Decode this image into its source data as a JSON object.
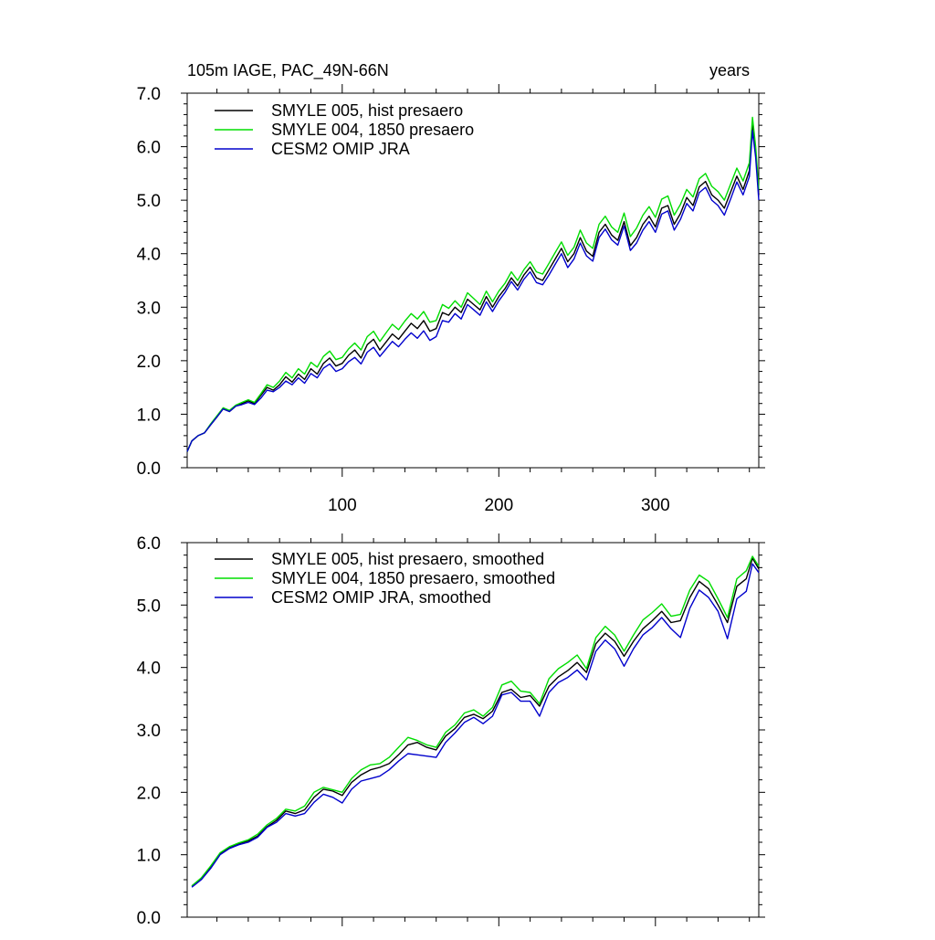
{
  "chart_data": [
    {
      "type": "line",
      "title_left": "105m IAGE, PAC_49N-66N",
      "title_right": "years",
      "xlim": [
        1,
        366
      ],
      "ylim": [
        0.0,
        7.0
      ],
      "y_ticks": [
        "0.0",
        "1.0",
        "2.0",
        "3.0",
        "4.0",
        "5.0",
        "6.0",
        "7.0"
      ],
      "x_ticks": [
        "100",
        "200",
        "300"
      ],
      "legend_position": "top-left",
      "grid": false,
      "series": [
        {
          "name": "SMYLE 005, hist presaero",
          "color": "#000000",
          "x": [
            1,
            4,
            8,
            12,
            16,
            20,
            24,
            28,
            32,
            36,
            40,
            44,
            48,
            52,
            56,
            60,
            64,
            68,
            72,
            76,
            80,
            84,
            88,
            92,
            96,
            100,
            104,
            108,
            112,
            116,
            120,
            124,
            128,
            132,
            136,
            140,
            144,
            148,
            152,
            156,
            160,
            164,
            168,
            172,
            176,
            180,
            184,
            188,
            192,
            196,
            200,
            204,
            208,
            212,
            216,
            220,
            224,
            228,
            232,
            236,
            240,
            244,
            248,
            252,
            256,
            260,
            264,
            268,
            272,
            276,
            280,
            284,
            288,
            292,
            296,
            300,
            304,
            308,
            312,
            316,
            320,
            324,
            328,
            332,
            336,
            340,
            344,
            348,
            352,
            356,
            360,
            362,
            364,
            366
          ],
          "values": [
            0.3,
            0.5,
            0.6,
            0.65,
            0.8,
            0.95,
            1.1,
            1.05,
            1.15,
            1.2,
            1.25,
            1.2,
            1.35,
            1.5,
            1.45,
            1.55,
            1.7,
            1.6,
            1.75,
            1.65,
            1.85,
            1.75,
            1.95,
            2.05,
            1.9,
            1.95,
            2.1,
            2.2,
            2.05,
            2.3,
            2.4,
            2.2,
            2.35,
            2.5,
            2.4,
            2.55,
            2.7,
            2.6,
            2.75,
            2.55,
            2.6,
            2.9,
            2.85,
            3.0,
            2.9,
            3.15,
            3.05,
            2.95,
            3.2,
            3.0,
            3.2,
            3.35,
            3.55,
            3.4,
            3.6,
            3.75,
            3.55,
            3.5,
            3.7,
            3.9,
            4.1,
            3.85,
            4.0,
            4.3,
            4.05,
            3.95,
            4.4,
            4.55,
            4.35,
            4.25,
            4.6,
            4.15,
            4.3,
            4.55,
            4.7,
            4.5,
            4.85,
            4.9,
            4.55,
            4.75,
            5.05,
            4.9,
            5.25,
            5.35,
            5.1,
            5.0,
            4.85,
            5.15,
            5.45,
            5.2,
            5.55,
            6.4,
            5.9,
            5.1
          ]
        },
        {
          "name": "SMYLE 004, 1850 presaero",
          "color": "#00dd00",
          "x": [
            1,
            4,
            8,
            12,
            16,
            20,
            24,
            28,
            32,
            36,
            40,
            44,
            48,
            52,
            56,
            60,
            64,
            68,
            72,
            76,
            80,
            84,
            88,
            92,
            96,
            100,
            104,
            108,
            112,
            116,
            120,
            124,
            128,
            132,
            136,
            140,
            144,
            148,
            152,
            156,
            160,
            164,
            168,
            172,
            176,
            180,
            184,
            188,
            192,
            196,
            200,
            204,
            208,
            212,
            216,
            220,
            224,
            228,
            232,
            236,
            240,
            244,
            248,
            252,
            256,
            260,
            264,
            268,
            272,
            276,
            280,
            284,
            288,
            292,
            296,
            300,
            304,
            308,
            312,
            316,
            320,
            324,
            328,
            332,
            336,
            340,
            344,
            348,
            352,
            356,
            360,
            362,
            364,
            366
          ],
          "values": [
            0.3,
            0.5,
            0.6,
            0.65,
            0.82,
            0.97,
            1.12,
            1.07,
            1.17,
            1.22,
            1.27,
            1.22,
            1.38,
            1.55,
            1.5,
            1.62,
            1.78,
            1.68,
            1.85,
            1.75,
            1.97,
            1.88,
            2.08,
            2.18,
            2.02,
            2.06,
            2.22,
            2.33,
            2.2,
            2.45,
            2.55,
            2.36,
            2.52,
            2.68,
            2.58,
            2.74,
            2.88,
            2.78,
            2.92,
            2.72,
            2.75,
            3.05,
            2.98,
            3.12,
            3.0,
            3.27,
            3.16,
            3.05,
            3.3,
            3.1,
            3.3,
            3.45,
            3.66,
            3.5,
            3.7,
            3.85,
            3.66,
            3.62,
            3.82,
            4.02,
            4.22,
            3.97,
            4.12,
            4.44,
            4.2,
            4.1,
            4.55,
            4.7,
            4.5,
            4.4,
            4.76,
            4.32,
            4.48,
            4.72,
            4.88,
            4.68,
            5.02,
            5.08,
            4.72,
            4.92,
            5.2,
            5.06,
            5.4,
            5.5,
            5.26,
            5.16,
            5.0,
            5.3,
            5.6,
            5.36,
            5.7,
            6.55,
            6.0,
            5.2
          ]
        },
        {
          "name": "CESM2 OMIP JRA",
          "color": "#0000cc",
          "x": [
            1,
            4,
            8,
            12,
            16,
            20,
            24,
            28,
            32,
            36,
            40,
            44,
            48,
            52,
            56,
            60,
            64,
            68,
            72,
            76,
            80,
            84,
            88,
            92,
            96,
            100,
            104,
            108,
            112,
            116,
            120,
            124,
            128,
            132,
            136,
            140,
            144,
            148,
            152,
            156,
            160,
            164,
            168,
            172,
            176,
            180,
            184,
            188,
            192,
            196,
            200,
            204,
            208,
            212,
            216,
            220,
            224,
            228,
            232,
            236,
            240,
            244,
            248,
            252,
            256,
            260,
            264,
            268,
            272,
            276,
            280,
            284,
            288,
            292,
            296,
            300,
            304,
            308,
            312,
            316,
            320,
            324,
            328,
            332,
            336,
            340,
            344,
            348,
            352,
            356,
            360,
            362,
            364,
            366
          ],
          "values": [
            0.3,
            0.5,
            0.6,
            0.65,
            0.8,
            0.95,
            1.1,
            1.05,
            1.15,
            1.18,
            1.22,
            1.18,
            1.3,
            1.45,
            1.42,
            1.5,
            1.62,
            1.55,
            1.68,
            1.58,
            1.76,
            1.68,
            1.86,
            1.94,
            1.8,
            1.85,
            1.98,
            2.06,
            1.94,
            2.16,
            2.25,
            2.08,
            2.22,
            2.36,
            2.26,
            2.4,
            2.52,
            2.42,
            2.56,
            2.38,
            2.45,
            2.75,
            2.72,
            2.88,
            2.78,
            3.05,
            2.95,
            2.85,
            3.1,
            2.92,
            3.12,
            3.28,
            3.48,
            3.32,
            3.52,
            3.66,
            3.46,
            3.42,
            3.6,
            3.8,
            4.0,
            3.74,
            3.9,
            4.2,
            3.96,
            3.86,
            4.3,
            4.46,
            4.26,
            4.16,
            4.52,
            4.06,
            4.2,
            4.44,
            4.6,
            4.4,
            4.74,
            4.8,
            4.44,
            4.64,
            4.94,
            4.8,
            5.14,
            5.24,
            5.0,
            4.9,
            4.72,
            5.02,
            5.34,
            5.1,
            5.44,
            6.3,
            5.8,
            5.0
          ]
        }
      ]
    },
    {
      "type": "line",
      "xlim": [
        1,
        366
      ],
      "ylim": [
        0.0,
        6.0
      ],
      "y_ticks": [
        "0.0",
        "1.0",
        "2.0",
        "3.0",
        "4.0",
        "5.0",
        "6.0"
      ],
      "legend_position": "top-left",
      "grid": false,
      "series": [
        {
          "name": "SMYLE 005, hist presaero, smoothed",
          "color": "#000000",
          "x": [
            4,
            10,
            16,
            22,
            28,
            34,
            40,
            46,
            52,
            58,
            64,
            70,
            76,
            82,
            88,
            94,
            100,
            106,
            112,
            118,
            124,
            130,
            136,
            142,
            148,
            154,
            160,
            166,
            172,
            178,
            184,
            190,
            196,
            202,
            208,
            214,
            220,
            226,
            232,
            238,
            244,
            250,
            256,
            262,
            268,
            274,
            280,
            286,
            292,
            298,
            304,
            310,
            316,
            322,
            328,
            334,
            340,
            346,
            352,
            358,
            362,
            366
          ],
          "values": [
            0.5,
            0.62,
            0.8,
            1.02,
            1.12,
            1.18,
            1.22,
            1.3,
            1.45,
            1.55,
            1.7,
            1.66,
            1.72,
            1.92,
            2.05,
            2.02,
            1.95,
            2.16,
            2.28,
            2.36,
            2.4,
            2.46,
            2.6,
            2.76,
            2.8,
            2.72,
            2.68,
            2.9,
            3.02,
            3.2,
            3.25,
            3.18,
            3.3,
            3.6,
            3.65,
            3.52,
            3.55,
            3.38,
            3.7,
            3.85,
            3.95,
            4.08,
            3.92,
            4.38,
            4.55,
            4.42,
            4.18,
            4.42,
            4.62,
            4.75,
            4.9,
            4.72,
            4.75,
            5.12,
            5.38,
            5.26,
            5.0,
            4.72,
            5.3,
            5.42,
            5.75,
            5.58
          ]
        },
        {
          "name": "SMYLE 004, 1850 presaero, smoothed",
          "color": "#00dd00",
          "x": [
            4,
            10,
            16,
            22,
            28,
            34,
            40,
            46,
            52,
            58,
            64,
            70,
            76,
            82,
            88,
            94,
            100,
            106,
            112,
            118,
            124,
            130,
            136,
            142,
            148,
            154,
            160,
            166,
            172,
            178,
            184,
            190,
            196,
            202,
            208,
            214,
            220,
            226,
            232,
            238,
            244,
            250,
            256,
            262,
            268,
            274,
            280,
            286,
            292,
            298,
            304,
            310,
            316,
            322,
            328,
            334,
            340,
            346,
            352,
            358,
            362,
            366
          ],
          "values": [
            0.5,
            0.63,
            0.82,
            1.03,
            1.13,
            1.19,
            1.24,
            1.33,
            1.48,
            1.58,
            1.73,
            1.7,
            1.78,
            2.0,
            2.08,
            2.04,
            2.0,
            2.22,
            2.36,
            2.44,
            2.46,
            2.56,
            2.72,
            2.88,
            2.83,
            2.76,
            2.72,
            2.96,
            3.08,
            3.27,
            3.32,
            3.22,
            3.36,
            3.72,
            3.78,
            3.62,
            3.6,
            3.42,
            3.82,
            3.98,
            4.08,
            4.2,
            3.98,
            4.48,
            4.66,
            4.52,
            4.26,
            4.52,
            4.76,
            4.88,
            5.02,
            4.82,
            4.85,
            5.24,
            5.48,
            5.38,
            5.1,
            4.8,
            5.42,
            5.55,
            5.78,
            5.62
          ]
        },
        {
          "name": "CESM2 OMIP JRA, smoothed",
          "color": "#0000cc",
          "x": [
            4,
            10,
            16,
            22,
            28,
            34,
            40,
            46,
            52,
            58,
            64,
            70,
            76,
            82,
            88,
            94,
            100,
            106,
            112,
            118,
            124,
            130,
            136,
            142,
            148,
            154,
            160,
            166,
            172,
            178,
            184,
            190,
            196,
            202,
            208,
            214,
            220,
            226,
            232,
            238,
            244,
            250,
            256,
            262,
            268,
            274,
            280,
            286,
            292,
            298,
            304,
            310,
            316,
            322,
            328,
            334,
            340,
            346,
            352,
            358,
            362,
            366
          ],
          "values": [
            0.48,
            0.6,
            0.78,
            1.0,
            1.1,
            1.16,
            1.2,
            1.28,
            1.44,
            1.52,
            1.66,
            1.62,
            1.66,
            1.84,
            1.97,
            1.92,
            1.83,
            2.05,
            2.18,
            2.22,
            2.26,
            2.36,
            2.5,
            2.62,
            2.6,
            2.58,
            2.56,
            2.8,
            2.95,
            3.12,
            3.2,
            3.1,
            3.22,
            3.56,
            3.6,
            3.46,
            3.46,
            3.22,
            3.6,
            3.76,
            3.84,
            3.96,
            3.8,
            4.26,
            4.44,
            4.3,
            4.02,
            4.3,
            4.52,
            4.64,
            4.8,
            4.62,
            4.48,
            4.95,
            5.24,
            5.12,
            4.9,
            4.46,
            5.1,
            5.22,
            5.66,
            5.52
          ]
        }
      ]
    }
  ]
}
